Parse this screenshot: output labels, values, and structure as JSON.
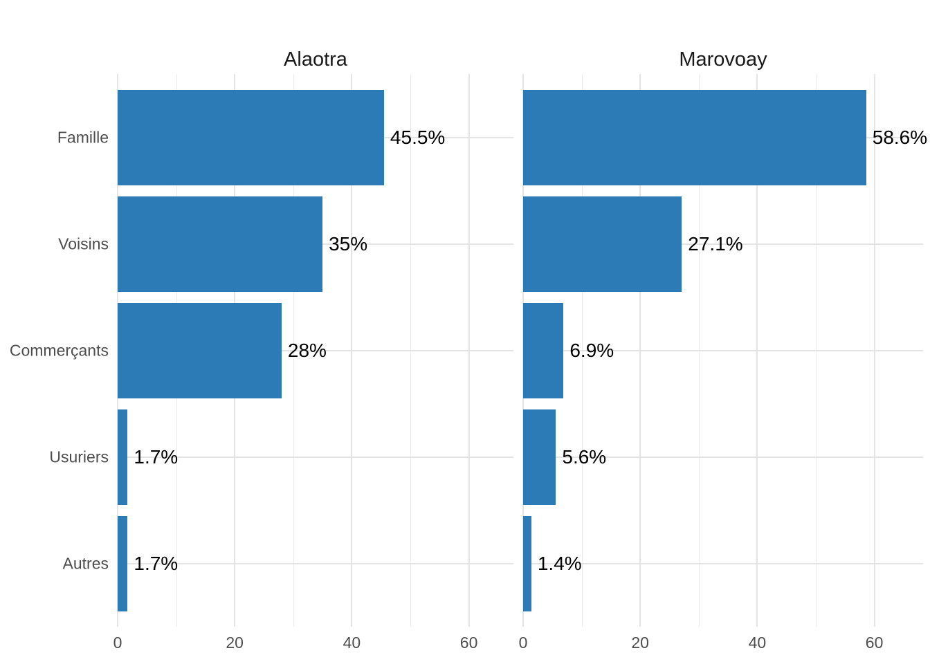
{
  "chart_data": {
    "type": "bar",
    "orientation": "horizontal",
    "facet_layout": "two panels side by side, shared y categories",
    "categories": [
      "Famille",
      "Voisins",
      "Commerçants",
      "Usuriers",
      "Autres"
    ],
    "facets": [
      {
        "title": "Alaotra",
        "values": [
          45.5,
          35,
          28,
          1.7,
          1.7
        ],
        "value_labels": [
          "45.5%",
          "35%",
          "28%",
          "1.7%",
          "1.7%"
        ]
      },
      {
        "title": "Marovoay",
        "values": [
          58.6,
          27.1,
          6.9,
          5.6,
          1.4
        ],
        "value_labels": [
          "58.6%",
          "27.1%",
          "6.9%",
          "5.6%",
          "1.4%"
        ]
      }
    ],
    "x_ticks": [
      0,
      20,
      40,
      60
    ],
    "x_tick_labels": [
      "0",
      "20",
      "40",
      "60"
    ],
    "x_minor_step": 10,
    "xlim": [
      0,
      68
    ],
    "grid": "major and minor vertical lines, major horizontal lines at category centers",
    "legend": "none",
    "xlabel": "",
    "ylabel": "",
    "colors": {
      "bar": "#2c7bb6",
      "grid_major": "#e4e4e4",
      "grid_minor": "#eaeaea",
      "axis_text": "#4d4d4d",
      "value_text": "#000000",
      "title_text": "#1a1a1a",
      "background": "#ffffff"
    }
  }
}
